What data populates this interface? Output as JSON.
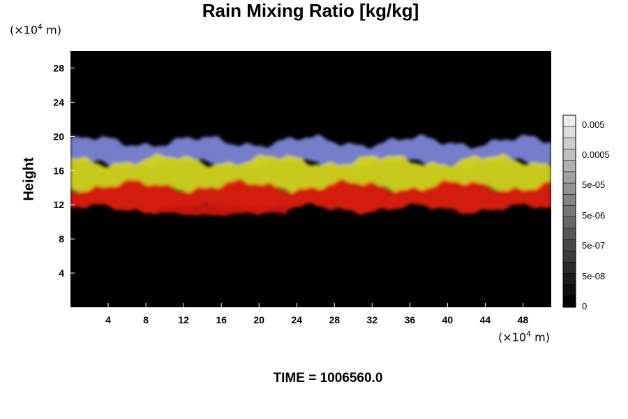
{
  "chart_data": {
    "type": "heatmap",
    "title": "Rain Mixing Ratio [kg/kg]",
    "ylabel": "Height",
    "y_unit_prefix": "(×10",
    "y_unit_exp": "4",
    "y_unit_suffix": " m)",
    "x_unit_prefix": "(×10",
    "x_unit_exp": "4",
    "x_unit_suffix": " m)",
    "xlim": [
      0,
      51
    ],
    "ylim": [
      0,
      30
    ],
    "x_ticks": [
      4,
      8,
      12,
      16,
      20,
      24,
      28,
      32,
      36,
      40,
      44,
      48
    ],
    "y_ticks": [
      4,
      8,
      12,
      16,
      20,
      24,
      28
    ],
    "layers": [
      {
        "name": "blue",
        "color": "#7c84d6",
        "y_bottom": 16.8,
        "y_top": 19.4
      },
      {
        "name": "yellow",
        "color": "#d2d41a",
        "y_bottom": 14.0,
        "y_top": 17.2
      },
      {
        "name": "red",
        "color": "#dd1c0c",
        "y_bottom": 11.5,
        "y_top": 14.2
      },
      {
        "name": "lower-red",
        "color": "#cc1408",
        "y_bottom": 10.9,
        "y_top": 11.9,
        "x_range": [
          9,
          23
        ]
      }
    ],
    "colorbar": {
      "labels": [
        "0.005",
        "0.0005",
        "5e-05",
        "5e-06",
        "5e-07",
        "5e-08",
        "0"
      ],
      "levels": 17
    },
    "footer": "TIME = 1006560.0"
  }
}
